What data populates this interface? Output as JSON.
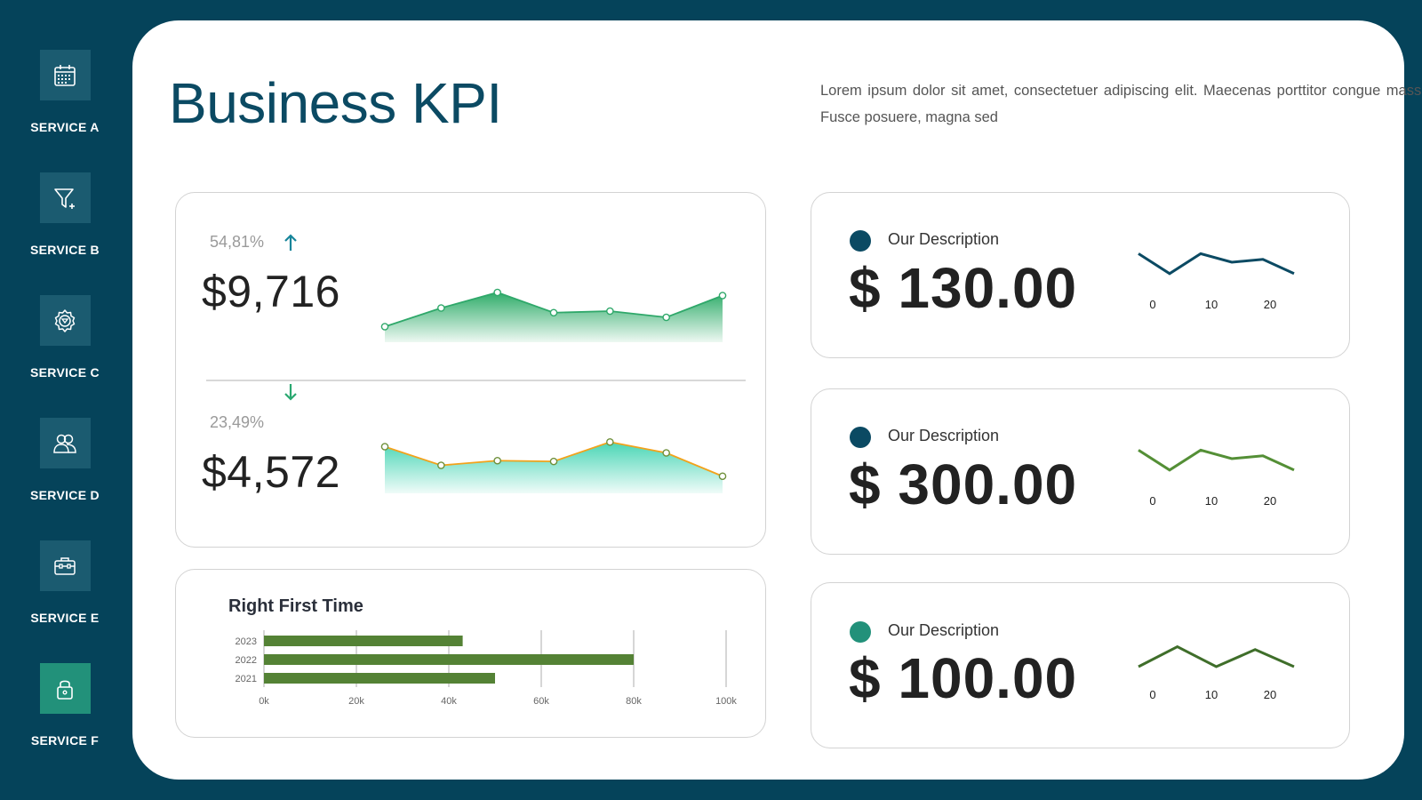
{
  "sidebar": {
    "items": [
      {
        "label": "SERVICE A",
        "icon": "calendar-icon"
      },
      {
        "label": "SERVICE B",
        "icon": "funnel-icon"
      },
      {
        "label": "SERVICE C",
        "icon": "gear-icon"
      },
      {
        "label": "SERVICE D",
        "icon": "users-icon"
      },
      {
        "label": "SERVICE E",
        "icon": "briefcase-icon"
      },
      {
        "label": "SERVICE F",
        "icon": "lock-icon",
        "active": true
      }
    ]
  },
  "header": {
    "title": "Business KPI",
    "description": "Lorem ipsum dolor sit amet, consectetuer adipiscing elit. Maecenas porttitor congue massa. Fusce posuere, magna sed"
  },
  "colors": {
    "background": "#05435a",
    "title": "#0b4a63",
    "active_service": "#22917a",
    "bar": "#548235"
  },
  "metrics": [
    {
      "percent": "54,81%",
      "trend": "up",
      "trend_icon": "arrow-up-icon",
      "value": "$9,716"
    },
    {
      "percent": "23,49%",
      "trend": "down",
      "trend_icon": "arrow-down-icon",
      "value": "$4,572"
    }
  ],
  "kpis": [
    {
      "description": "Our Description",
      "value": "$ 130.00",
      "dot_color": "#0b4a63",
      "line_color": "#0b4a63"
    },
    {
      "description": "Our Description",
      "value": "$ 300.00",
      "dot_color": "#0b4a63",
      "line_color": "#548f36"
    },
    {
      "description": "Our Description",
      "value": "$ 100.00",
      "dot_color": "#22917a",
      "line_color": "#3f6e2a"
    }
  ],
  "chart_data": [
    {
      "type": "area",
      "series": [
        {
          "values": [
            10,
            22,
            32,
            19,
            20,
            16,
            30
          ]
        }
      ],
      "ylim": [
        0,
        40
      ],
      "line_color": "#2fa86a",
      "marker_color": "#2fa86a",
      "fill_color": "#25a862"
    },
    {
      "type": "area",
      "series": [
        {
          "values": [
            30,
            18,
            21,
            20.5,
            33,
            26,
            11
          ]
        }
      ],
      "ylim": [
        0,
        40
      ],
      "line_color": "#f2a21b",
      "marker_color": "#6e8f3a",
      "fill_color": "#40d3b1"
    },
    {
      "type": "line",
      "x_ticks": [
        "0",
        "10",
        "20"
      ],
      "series": [
        {
          "values": [
            26,
            12,
            26,
            20,
            22,
            12
          ]
        }
      ],
      "line_color": "#0b4a63"
    },
    {
      "type": "line",
      "x_ticks": [
        "0",
        "10",
        "20"
      ],
      "series": [
        {
          "values": [
            26,
            12,
            26,
            20,
            22,
            12
          ]
        }
      ],
      "line_color": "#548f36"
    },
    {
      "type": "line",
      "x_ticks": [
        "0",
        "10",
        "20"
      ],
      "series": [
        {
          "values": [
            10,
            24,
            10,
            22,
            10
          ]
        }
      ],
      "line_color": "#3f6e2a"
    },
    {
      "type": "bar",
      "orientation": "horizontal",
      "title": "Right First Time",
      "categories": [
        "2023",
        "2022",
        "2021"
      ],
      "values": [
        43000,
        80000,
        50000
      ],
      "xlim": [
        0,
        100000
      ],
      "x_ticks": [
        "0k",
        "20k",
        "40k",
        "60k",
        "80k",
        "100k"
      ],
      "grid": true,
      "color": "#548235"
    }
  ]
}
